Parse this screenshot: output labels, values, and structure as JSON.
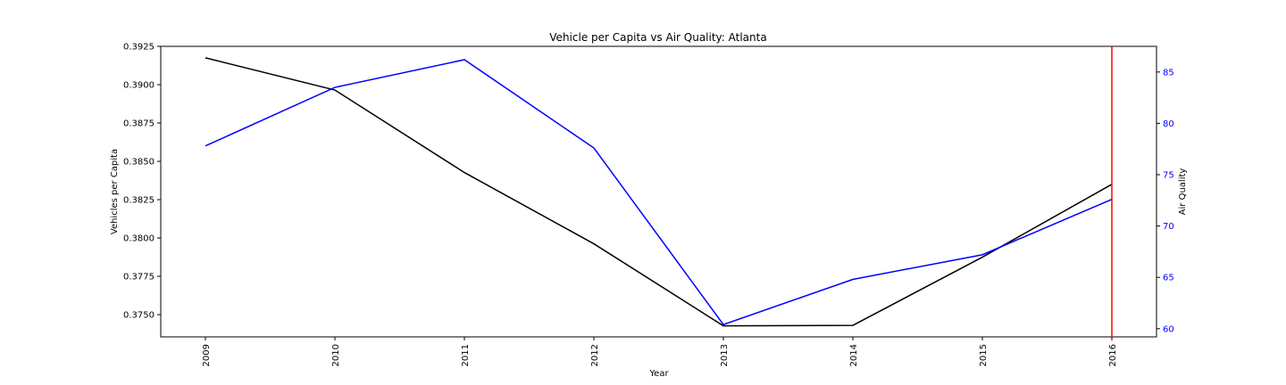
{
  "chart_data": {
    "type": "line",
    "title": "Vehicle per Capita vs Air Quality: Atlanta",
    "xlabel": "Year",
    "ylabel": "Vehicles per Capita",
    "y2label": "Air Quality",
    "categories": [
      "2009",
      "2010",
      "2011",
      "2012",
      "2013",
      "2014",
      "2015",
      "2016"
    ],
    "series": [
      {
        "axis": "left",
        "color": "#000000",
        "values": [
          0.39175,
          0.38965,
          0.38427,
          0.37962,
          0.37427,
          0.3743,
          0.37875,
          0.3835
        ]
      },
      {
        "axis": "right",
        "color": "#0000ff",
        "values": [
          77.8,
          83.5,
          86.2,
          77.6,
          60.4,
          64.8,
          67.2,
          72.6
        ]
      }
    ],
    "ylim": [
      0.37355,
      0.3925
    ],
    "y2lim": [
      59.2,
      87.5
    ],
    "yticks": [
      "0.3750",
      "0.3775",
      "0.3800",
      "0.3825",
      "0.3850",
      "0.3875",
      "0.3900",
      "0.3925"
    ],
    "y2ticks": [
      "60",
      "65",
      "70",
      "75",
      "80",
      "85"
    ],
    "vline": {
      "x": "2016",
      "color": "#ff0000"
    },
    "grid": false
  }
}
